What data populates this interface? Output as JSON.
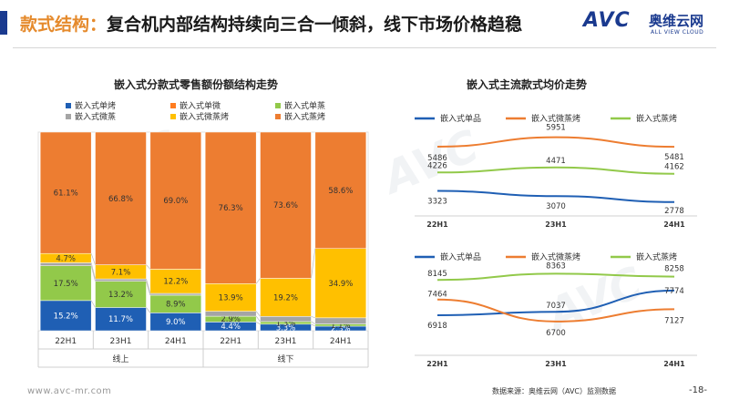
{
  "header": {
    "title_prefix": "款式结构：",
    "title_main": "复合机内部结构持续向三合一倾斜，线下市场价格趋稳",
    "accent_color": "#1a3a8f",
    "highlight_color": "#e58a2c"
  },
  "logo": {
    "main": "AVC",
    "cn": "奥维云网",
    "en": "ALL VIEW CLOUD"
  },
  "watermark": "AVC",
  "footer": {
    "website": "www.avc-mr.com",
    "source": "数据来源：奥维云网（AVC）监测数据",
    "page": "-18-"
  },
  "colors": {
    "dan_kao": "#1f5fb4",
    "dan_wei": "#ed7d31",
    "dan_zheng": "#92c94a",
    "wei_zheng": "#a5a5a5",
    "wei_zheng_kao": "#ffc000",
    "zheng_kao": "#ed7d31"
  },
  "chart_data": [
    {
      "type": "bar",
      "stacked": true,
      "percent": true,
      "title": "嵌入式分款式零售额份额结构走势",
      "categories": [
        "22H1",
        "23H1",
        "24H1",
        "22H1",
        "23H1",
        "24H1"
      ],
      "groups": [
        {
          "label": "线上",
          "categories": [
            "22H1",
            "23H1",
            "24H1"
          ]
        },
        {
          "label": "线下",
          "categories": [
            "22H1",
            "23H1",
            "24H1"
          ]
        }
      ],
      "legend_position": "top",
      "series": [
        {
          "name": "嵌入式单烤",
          "color": "#1f5fb4",
          "values": [
            15.2,
            11.7,
            9.0,
            4.4,
            3.3,
            2.3
          ],
          "labels": [
            "15.2%",
            "11.7%",
            "9.0%",
            "4.4%",
            "3.3%",
            "2.3%"
          ]
        },
        {
          "name": "嵌入式单微",
          "color": "#ff7c1f",
          "values": [
            0,
            0,
            0,
            0,
            0,
            0
          ],
          "labels": [
            "",
            "",
            "",
            "",
            "",
            ""
          ]
        },
        {
          "name": "嵌入式单蒸",
          "color": "#92c94a",
          "values": [
            17.5,
            13.2,
            8.9,
            2.9,
            1.3,
            1.1
          ],
          "labels": [
            "17.5%",
            "13.2%",
            "8.9%",
            "2.9%",
            "1.3%",
            "1.1%"
          ]
        },
        {
          "name": "嵌入式微蒸",
          "color": "#a5a5a5",
          "values": [
            1.5,
            1.2,
            0.9,
            2.5,
            2.6,
            3.1
          ],
          "labels": [
            "",
            "",
            "",
            "",
            "",
            ""
          ]
        },
        {
          "name": "嵌入式微蒸烤",
          "color": "#ffc000",
          "values": [
            4.7,
            7.1,
            12.2,
            13.9,
            19.2,
            34.9
          ],
          "labels": [
            "4.7%",
            "7.1%",
            "12.2%",
            "13.9%",
            "19.2%",
            "34.9%"
          ]
        },
        {
          "name": "嵌入式蒸烤",
          "color": "#ed7d31",
          "values": [
            61.1,
            66.8,
            69.0,
            76.3,
            73.6,
            58.6
          ],
          "labels": [
            "61.1%",
            "66.8%",
            "69.0%",
            "76.3%",
            "73.6%",
            "58.6%"
          ]
        }
      ]
    },
    {
      "type": "line",
      "title": "嵌入式主流款式均价走势",
      "panel": "线上",
      "x": [
        "22H1",
        "23H1",
        "24H1"
      ],
      "legend_position": "top",
      "series": [
        {
          "name": "嵌入式单品",
          "color": "#1f5fb4",
          "values": [
            3323,
            3070,
            2778
          ]
        },
        {
          "name": "嵌入式微蒸烤",
          "color": "#ed7d31",
          "values": [
            5486,
            5951,
            5481
          ]
        },
        {
          "name": "嵌入式蒸烤",
          "color": "#92c94a",
          "values": [
            4226,
            4471,
            4162
          ]
        }
      ]
    },
    {
      "type": "line",
      "panel": "线下",
      "x": [
        "22H1",
        "23H1",
        "24H1"
      ],
      "legend_position": "top",
      "series": [
        {
          "name": "嵌入式单品",
          "color": "#1f5fb4",
          "values": [
            6918,
            7037,
            7774
          ]
        },
        {
          "name": "嵌入式微蒸烤",
          "color": "#ed7d31",
          "values": [
            7464,
            6700,
            7127
          ]
        },
        {
          "name": "嵌入式蒸烤",
          "color": "#92c94a",
          "values": [
            8145,
            8363,
            8258
          ]
        }
      ]
    }
  ]
}
